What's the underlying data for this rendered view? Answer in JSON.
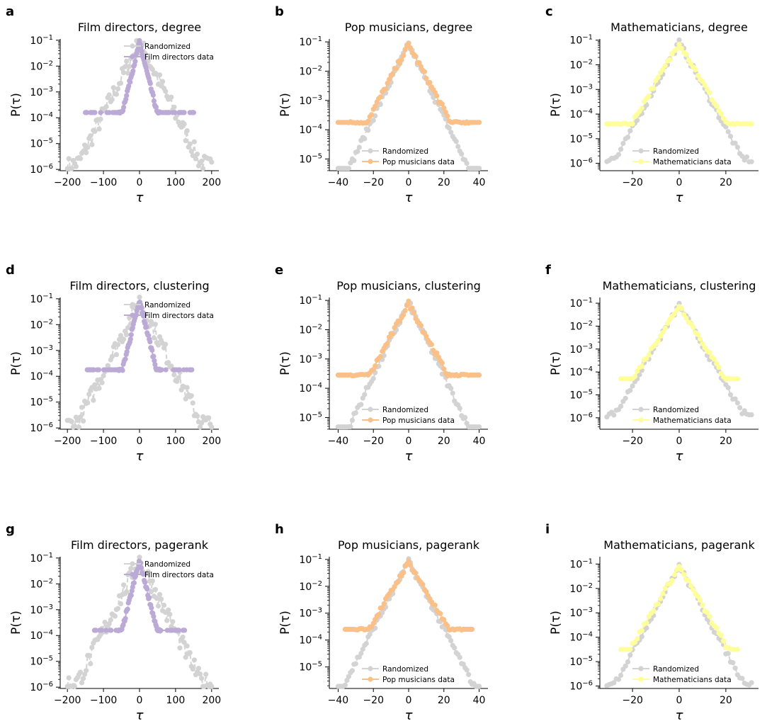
{
  "colors": {
    "rand": "#d3d3d3",
    "film": "#bcaad6",
    "pop": "#fbc088",
    "math": "#fefe9b",
    "axis": "#000000"
  },
  "legend_rand": "Randomized",
  "charts": [
    {
      "letter": "a",
      "type": "line",
      "title": "Film directors, degree",
      "dataset": "film",
      "legend_data": "Film directors data",
      "xlabel": "τ",
      "ylabel": "P(τ)",
      "xlim": [
        -220,
        220
      ],
      "xticks": [
        -200,
        -100,
        0,
        100,
        200
      ],
      "xticklabels": [
        "−200",
        "−100",
        "0",
        "100",
        "200"
      ],
      "yticks": [
        -6,
        -5,
        -4,
        -3,
        -2,
        -1
      ],
      "ylim": [
        -6.05,
        -0.95
      ],
      "legend": "top",
      "tail": -3.8,
      "xspan": 200,
      "rndw": 38,
      "dataw": 18,
      "tailSpan": 150
    },
    {
      "letter": "b",
      "type": "line",
      "title": "Pop musicians, degree",
      "dataset": "pop",
      "legend_data": "Pop musicians data",
      "xlabel": "τ",
      "ylabel": "P(τ)",
      "xlim": [
        -45,
        45
      ],
      "xticks": [
        -40,
        -20,
        0,
        20,
        40
      ],
      "xticklabels": [
        "−40",
        "−20",
        "0",
        "20",
        "40"
      ],
      "yticks": [
        -5,
        -4,
        -3,
        -2,
        -1
      ],
      "ylim": [
        -5.4,
        -0.9
      ],
      "legend": "bottom",
      "tail": -3.75,
      "xspan": 40,
      "rndw": 8.4,
      "dataw": 9,
      "tailSpan": 40
    },
    {
      "letter": "c",
      "type": "line",
      "title": "Mathematicians, degree",
      "dataset": "math",
      "legend_data": "Mathematicians data",
      "xlabel": "τ",
      "ylabel": "P(τ)",
      "xlim": [
        -34,
        34
      ],
      "xticks": [
        -20,
        0,
        20
      ],
      "xticklabels": [
        "−20",
        "0",
        "20"
      ],
      "yticks": [
        -6,
        -5,
        -4,
        -3,
        -2,
        -1
      ],
      "ylim": [
        -6.3,
        -0.95
      ],
      "legend": "bottom",
      "tail": -4.4,
      "xspan": 31,
      "rndw": 6,
      "dataw": 6.2,
      "tailSpan": 31
    },
    {
      "letter": "d",
      "type": "line",
      "title": "Film directors, clustering",
      "dataset": "film",
      "legend_data": "Film directors data",
      "xlabel": "τ",
      "ylabel": "P(τ)",
      "xlim": [
        -220,
        220
      ],
      "xticks": [
        -200,
        -100,
        0,
        100,
        200
      ],
      "xticklabels": [
        "−200",
        "−100",
        "0",
        "100",
        "200"
      ],
      "yticks": [
        -6,
        -5,
        -4,
        -3,
        -2,
        -1
      ],
      "ylim": [
        -6.05,
        -0.95
      ],
      "legend": "top",
      "tail": -3.75,
      "xspan": 200,
      "rndw": 38,
      "dataw": 18,
      "tailSpan": 145
    },
    {
      "letter": "e",
      "type": "line",
      "title": "Pop musicians, clustering",
      "dataset": "pop",
      "legend_data": "Pop musicians data",
      "xlabel": "τ",
      "ylabel": "P(τ)",
      "xlim": [
        -45,
        45
      ],
      "xticks": [
        -40,
        -20,
        0,
        20,
        40
      ],
      "xticklabels": [
        "−40",
        "−20",
        "0",
        "20",
        "40"
      ],
      "yticks": [
        -5,
        -4,
        -3,
        -2,
        -1
      ],
      "ylim": [
        -5.4,
        -0.9
      ],
      "legend": "bottom",
      "tail": -3.55,
      "xspan": 40,
      "rndw": 8.4,
      "dataw": 9,
      "tailSpan": 40
    },
    {
      "letter": "f",
      "type": "line",
      "title": "Mathematicians, clustering",
      "dataset": "math",
      "legend_data": "Mathematicians data",
      "xlabel": "τ",
      "ylabel": "P(τ)",
      "xlim": [
        -34,
        34
      ],
      "xticks": [
        -20,
        0,
        20
      ],
      "xticklabels": [
        "−20",
        "0",
        "20"
      ],
      "yticks": [
        -6,
        -5,
        -4,
        -3,
        -2,
        -1
      ],
      "ylim": [
        -6.5,
        -0.75
      ],
      "legend": "bottom",
      "tail": -4.3,
      "xspan": 31,
      "rndw": 6,
      "dataw": 6.2,
      "tailSpan": 25
    },
    {
      "letter": "g",
      "type": "line",
      "title": "Film directors, pagerank",
      "dataset": "film",
      "legend_data": "Film directors data",
      "xlabel": "τ",
      "ylabel": "P(τ)",
      "xlim": [
        -220,
        220
      ],
      "xticks": [
        -200,
        -100,
        0,
        100,
        200
      ],
      "xticklabels": [
        "−200",
        "−100",
        "0",
        "100",
        "200"
      ],
      "yticks": [
        -6,
        -5,
        -4,
        -3,
        -2,
        -1
      ],
      "ylim": [
        -6.05,
        -0.95
      ],
      "legend": "top",
      "tail": -3.8,
      "xspan": 200,
      "rndw": 38,
      "dataw": 18,
      "tailSpan": 125
    },
    {
      "letter": "h",
      "type": "line",
      "title": "Pop musicians, pagerank",
      "dataset": "pop",
      "legend_data": "Pop musicians data",
      "xlabel": "τ",
      "ylabel": "P(τ)",
      "xlim": [
        -45,
        45
      ],
      "xticks": [
        -40,
        -20,
        0,
        20,
        40
      ],
      "xticklabels": [
        "−40",
        "−20",
        "0",
        "20",
        "40"
      ],
      "yticks": [
        -5,
        -4,
        -3,
        -2,
        -1
      ],
      "ylim": [
        -5.8,
        -0.9
      ],
      "legend": "bottom",
      "tail": -3.6,
      "xspan": 40,
      "rndw": 8.4,
      "dataw": 9,
      "tailSpan": 36
    },
    {
      "letter": "i",
      "type": "line",
      "title": "Mathematicians, pagerank",
      "dataset": "math",
      "legend_data": "Mathematicians data",
      "xlabel": "τ",
      "ylabel": "P(τ)",
      "xlim": [
        -34,
        34
      ],
      "xticks": [
        -20,
        0,
        20
      ],
      "xticklabels": [
        "−20",
        "0",
        "20"
      ],
      "yticks": [
        -6,
        -5,
        -4,
        -3,
        -2,
        -1
      ],
      "ylim": [
        -6.1,
        -0.7
      ],
      "legend": "bottom",
      "tail": -4.5,
      "xspan": 31,
      "rndw": 6,
      "dataw": 6.2,
      "tailSpan": 25
    }
  ]
}
